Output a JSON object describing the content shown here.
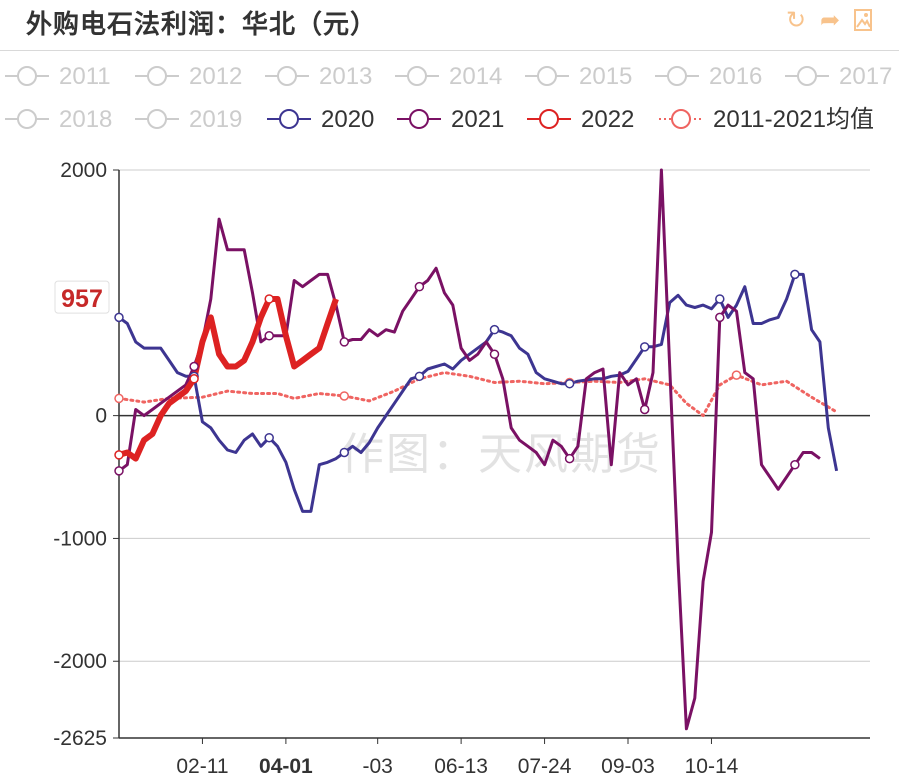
{
  "title": "外购电石法利润：华北（元）",
  "watermark": "作图：天风期货",
  "toolbar": {
    "refresh_icon": "refresh-icon",
    "share_icon": "share-icon",
    "save_image_icon": "save-image-icon",
    "color": "#f8c38c"
  },
  "chart_data": {
    "type": "line",
    "title": "外购电石法利润：华北（元）",
    "xlabel": "",
    "ylabel": "",
    "ylim": [
      -2625,
      2000
    ],
    "y_ticks": [
      2000,
      0,
      -1000,
      -2000,
      -2625
    ],
    "x_ticks": [
      "02-11",
      "04-01",
      "-03",
      "06-13",
      "07-24",
      "09-03",
      "10-14"
    ],
    "x_tick_highlight": "04-01",
    "x_tick_positions": [
      10,
      20,
      31,
      41,
      51,
      61,
      71
    ],
    "x_range": [
      0,
      90
    ],
    "current_value_label": "957",
    "grid": true,
    "legend_position": "top",
    "series": [
      {
        "name": "2011",
        "active": false,
        "color": "#cccccc",
        "style": "solid",
        "points": []
      },
      {
        "name": "2012",
        "active": false,
        "color": "#cccccc",
        "style": "solid",
        "points": []
      },
      {
        "name": "2013",
        "active": false,
        "color": "#cccccc",
        "style": "solid",
        "points": []
      },
      {
        "name": "2014",
        "active": false,
        "color": "#cccccc",
        "style": "solid",
        "points": []
      },
      {
        "name": "2015",
        "active": false,
        "color": "#cccccc",
        "style": "solid",
        "points": []
      },
      {
        "name": "2016",
        "active": false,
        "color": "#cccccc",
        "style": "solid",
        "points": []
      },
      {
        "name": "2017",
        "active": false,
        "color": "#cccccc",
        "style": "solid",
        "points": []
      },
      {
        "name": "2018",
        "active": false,
        "color": "#cccccc",
        "style": "solid",
        "points": []
      },
      {
        "name": "2019",
        "active": false,
        "color": "#cccccc",
        "style": "solid",
        "points": []
      },
      {
        "name": "2020",
        "active": true,
        "color": "#3d3591",
        "style": "solid",
        "points": [
          [
            0,
            800
          ],
          [
            1,
            750
          ],
          [
            2,
            600
          ],
          [
            3,
            550
          ],
          [
            4,
            550
          ],
          [
            5,
            550
          ],
          [
            6,
            450
          ],
          [
            7,
            350
          ],
          [
            8,
            320
          ],
          [
            9,
            320
          ],
          [
            10,
            -50
          ],
          [
            11,
            -100
          ],
          [
            12,
            -200
          ],
          [
            13,
            -280
          ],
          [
            14,
            -300
          ],
          [
            15,
            -200
          ],
          [
            16,
            -150
          ],
          [
            17,
            -250
          ],
          [
            18,
            -180
          ],
          [
            19,
            -250
          ],
          [
            20,
            -380
          ],
          [
            21,
            -600
          ],
          [
            22,
            -780
          ],
          [
            23,
            -780
          ],
          [
            24,
            -400
          ],
          [
            25,
            -380
          ],
          [
            26,
            -350
          ],
          [
            27,
            -300
          ],
          [
            28,
            -250
          ],
          [
            29,
            -300
          ],
          [
            30,
            -220
          ],
          [
            31,
            -100
          ],
          [
            32,
            0
          ],
          [
            33,
            100
          ],
          [
            34,
            200
          ],
          [
            35,
            300
          ],
          [
            36,
            320
          ],
          [
            37,
            380
          ],
          [
            38,
            400
          ],
          [
            39,
            420
          ],
          [
            40,
            380
          ],
          [
            41,
            450
          ],
          [
            42,
            500
          ],
          [
            43,
            550
          ],
          [
            44,
            600
          ],
          [
            45,
            700
          ],
          [
            46,
            680
          ],
          [
            47,
            650
          ],
          [
            48,
            550
          ],
          [
            49,
            500
          ],
          [
            50,
            350
          ],
          [
            51,
            300
          ],
          [
            52,
            280
          ],
          [
            53,
            260
          ],
          [
            54,
            260
          ],
          [
            55,
            280
          ],
          [
            56,
            290
          ],
          [
            57,
            300
          ],
          [
            58,
            300
          ],
          [
            59,
            320
          ],
          [
            60,
            330
          ],
          [
            61,
            360
          ],
          [
            62,
            460
          ],
          [
            63,
            560
          ],
          [
            64,
            560
          ],
          [
            65,
            580
          ],
          [
            66,
            920
          ],
          [
            67,
            980
          ],
          [
            68,
            900
          ],
          [
            69,
            880
          ],
          [
            70,
            900
          ],
          [
            71,
            870
          ],
          [
            72,
            950
          ],
          [
            73,
            800
          ],
          [
            74,
            900
          ],
          [
            75,
            1050
          ],
          [
            76,
            750
          ],
          [
            77,
            750
          ],
          [
            78,
            780
          ],
          [
            79,
            800
          ],
          [
            80,
            950
          ],
          [
            81,
            1150
          ],
          [
            82,
            1150
          ],
          [
            83,
            700
          ],
          [
            84,
            600
          ],
          [
            85,
            -100
          ],
          [
            86,
            -450
          ]
        ]
      },
      {
        "name": "2021",
        "active": true,
        "color": "#7a1164",
        "style": "solid",
        "points": [
          [
            0,
            -450
          ],
          [
            1,
            -400
          ],
          [
            2,
            50
          ],
          [
            3,
            0
          ],
          [
            4,
            50
          ],
          [
            5,
            100
          ],
          [
            6,
            150
          ],
          [
            7,
            200
          ],
          [
            8,
            250
          ],
          [
            9,
            400
          ],
          [
            10,
            600
          ],
          [
            11,
            950
          ],
          [
            12,
            1600
          ],
          [
            13,
            1350
          ],
          [
            14,
            1350
          ],
          [
            15,
            1350
          ],
          [
            16,
            1000
          ],
          [
            17,
            600
          ],
          [
            18,
            650
          ],
          [
            19,
            650
          ],
          [
            20,
            650
          ],
          [
            21,
            1100
          ],
          [
            22,
            1050
          ],
          [
            23,
            1100
          ],
          [
            24,
            1150
          ],
          [
            25,
            1150
          ],
          [
            26,
            900
          ],
          [
            27,
            600
          ],
          [
            28,
            620
          ],
          [
            29,
            620
          ],
          [
            30,
            700
          ],
          [
            31,
            650
          ],
          [
            32,
            700
          ],
          [
            33,
            680
          ],
          [
            34,
            850
          ],
          [
            35,
            950
          ],
          [
            36,
            1050
          ],
          [
            37,
            1100
          ],
          [
            38,
            1200
          ],
          [
            39,
            1000
          ],
          [
            40,
            900
          ],
          [
            41,
            550
          ],
          [
            42,
            450
          ],
          [
            43,
            500
          ],
          [
            44,
            600
          ],
          [
            45,
            500
          ],
          [
            46,
            300
          ],
          [
            47,
            -100
          ],
          [
            48,
            -200
          ],
          [
            49,
            -250
          ],
          [
            50,
            -300
          ],
          [
            51,
            -400
          ],
          [
            52,
            -200
          ],
          [
            53,
            -250
          ],
          [
            54,
            -350
          ],
          [
            55,
            -250
          ],
          [
            56,
            300
          ],
          [
            57,
            350
          ],
          [
            58,
            380
          ],
          [
            59,
            -400
          ],
          [
            60,
            350
          ],
          [
            61,
            250
          ],
          [
            62,
            300
          ],
          [
            63,
            50
          ],
          [
            64,
            350
          ],
          [
            65,
            2000
          ],
          [
            66,
            400
          ],
          [
            67,
            -1200
          ],
          [
            68,
            -2550
          ],
          [
            69,
            -2300
          ],
          [
            70,
            -1350
          ],
          [
            71,
            -950
          ],
          [
            72,
            800
          ],
          [
            73,
            900
          ],
          [
            74,
            850
          ],
          [
            75,
            350
          ],
          [
            76,
            300
          ],
          [
            77,
            -400
          ],
          [
            78,
            -500
          ],
          [
            79,
            -600
          ],
          [
            80,
            -500
          ],
          [
            81,
            -400
          ],
          [
            82,
            -300
          ],
          [
            83,
            -300
          ],
          [
            84,
            -350
          ]
        ]
      },
      {
        "name": "2022",
        "active": true,
        "color": "#dd2222",
        "style": "solid",
        "points": [
          [
            0,
            -320
          ],
          [
            1,
            -300
          ],
          [
            2,
            -350
          ],
          [
            3,
            -200
          ],
          [
            4,
            -150
          ],
          [
            5,
            0
          ],
          [
            6,
            100
          ],
          [
            7,
            150
          ],
          [
            8,
            200
          ],
          [
            9,
            300
          ],
          [
            10,
            600
          ],
          [
            11,
            800
          ],
          [
            12,
            500
          ],
          [
            13,
            400
          ],
          [
            14,
            400
          ],
          [
            15,
            450
          ],
          [
            16,
            600
          ],
          [
            17,
            800
          ],
          [
            18,
            950
          ],
          [
            19,
            950
          ],
          [
            20,
            650
          ],
          [
            21,
            400
          ],
          [
            22,
            450
          ],
          [
            23,
            500
          ],
          [
            24,
            550
          ],
          [
            25,
            750
          ],
          [
            26,
            950
          ]
        ]
      },
      {
        "name": "2011-2021均值",
        "active": true,
        "color": "#ef6461",
        "style": "dotted",
        "points": [
          [
            0,
            140
          ],
          [
            3,
            110
          ],
          [
            6,
            140
          ],
          [
            10,
            150
          ],
          [
            13,
            200
          ],
          [
            16,
            180
          ],
          [
            19,
            180
          ],
          [
            21,
            140
          ],
          [
            24,
            180
          ],
          [
            27,
            160
          ],
          [
            30,
            120
          ],
          [
            33,
            200
          ],
          [
            36,
            300
          ],
          [
            39,
            350
          ],
          [
            42,
            320
          ],
          [
            45,
            270
          ],
          [
            48,
            280
          ],
          [
            51,
            260
          ],
          [
            54,
            270
          ],
          [
            57,
            280
          ],
          [
            60,
            270
          ],
          [
            63,
            300
          ],
          [
            66,
            250
          ],
          [
            68,
            100
          ],
          [
            69,
            50
          ],
          [
            70,
            0
          ],
          [
            72,
            250
          ],
          [
            74,
            330
          ],
          [
            77,
            250
          ],
          [
            80,
            280
          ],
          [
            83,
            150
          ],
          [
            86,
            30
          ]
        ]
      }
    ]
  }
}
